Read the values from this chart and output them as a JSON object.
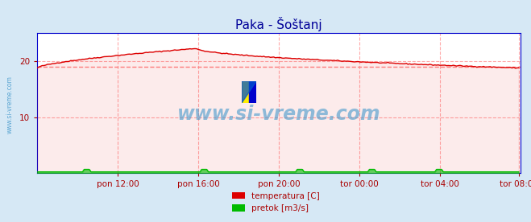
{
  "title": "Paka - Šoštanj",
  "title_color": "#000099",
  "bg_color": "#d6e8f5",
  "plot_bg_color": "#ffffff",
  "grid_color": "#ffaaaa",
  "xlabel_ticks": [
    "pon 12:00",
    "pon 16:00",
    "pon 20:00",
    "tor 00:00",
    "tor 04:00",
    "tor 08:00"
  ],
  "xlabel_ticks_color": "#aa0000",
  "ylabel_values": [
    10,
    20
  ],
  "ylim": [
    0,
    25
  ],
  "xlim": [
    0,
    288
  ],
  "avg_temp": 19.0,
  "watermark": "www.si-vreme.com",
  "watermark_color": "#4499cc",
  "legend_items": [
    {
      "label": "temperatura [C]",
      "color": "#dd0000"
    },
    {
      "label": "pretok [m3/s]",
      "color": "#00bb00"
    }
  ],
  "temp_color": "#dd0000",
  "pretok_color": "#00bb00",
  "avg_temp_color": "#ff8888",
  "axis_color": "#0000cc",
  "tick_positions_x": [
    48,
    96,
    144,
    192,
    240,
    287
  ]
}
